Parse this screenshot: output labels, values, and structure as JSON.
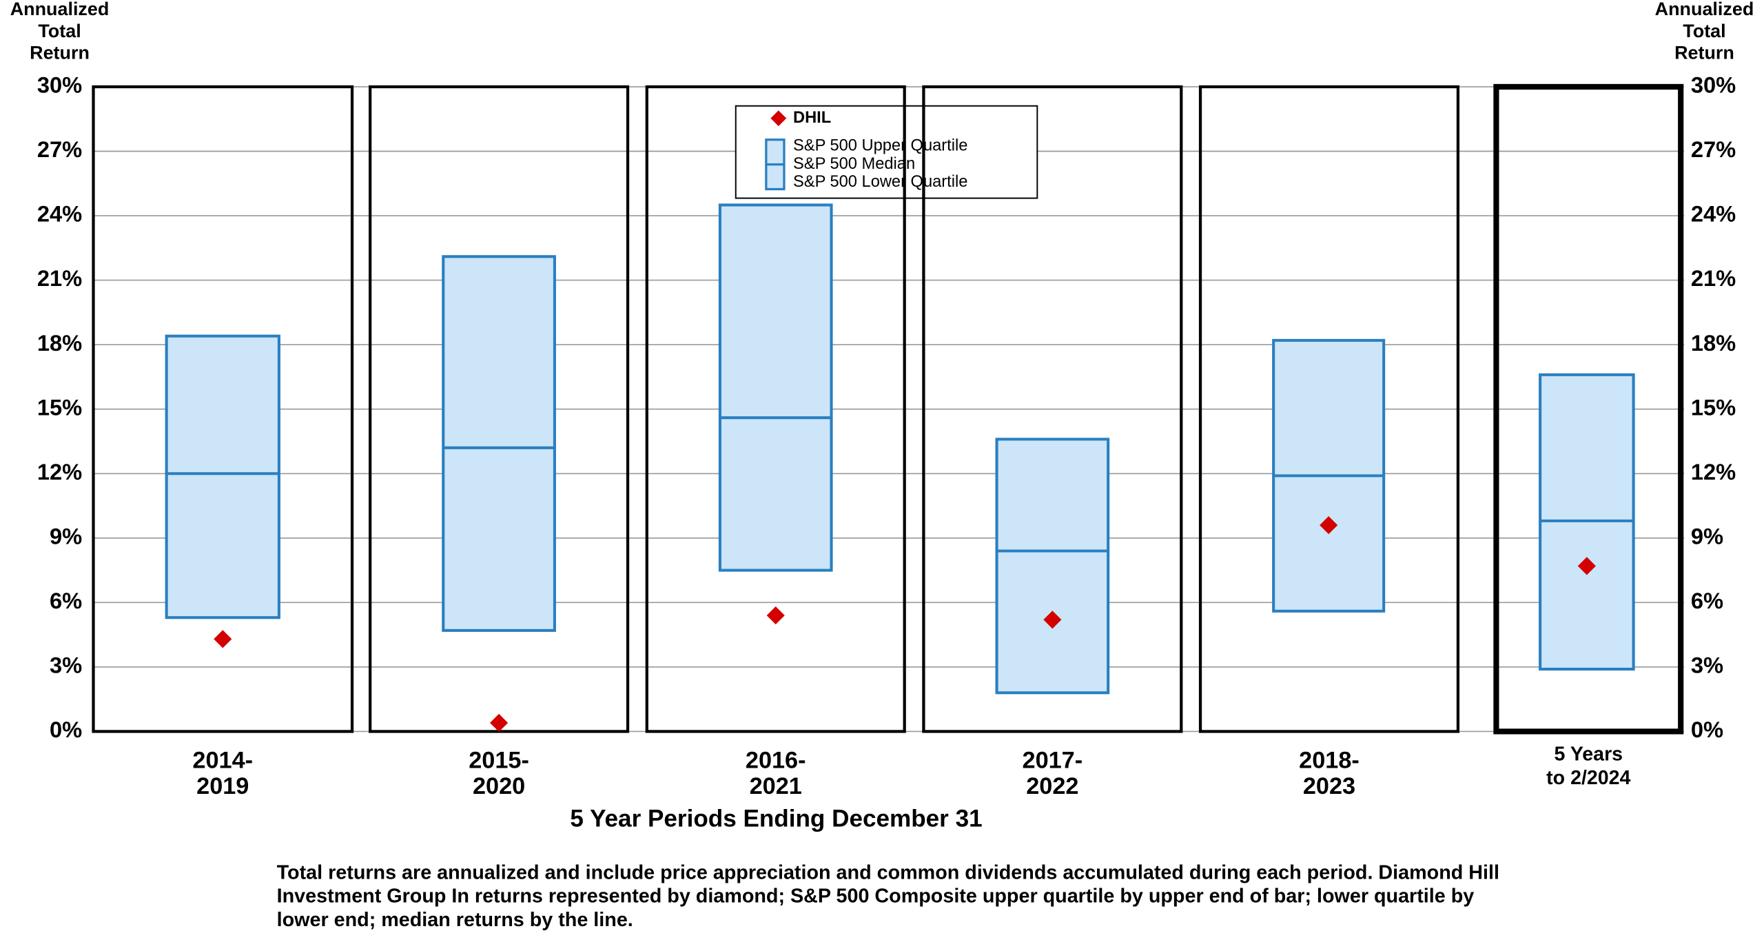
{
  "chart_data": {
    "type": "quartile-box",
    "y_label": "Annualized\nTotal\nReturn",
    "x_label": "5 Year Periods Ending December 31",
    "footnote": "Total returns are annualized and include price appreciation and common dividends accumulated during each period. Diamond Hill Investment Group In returns represented by diamond; S&P 500 Composite upper quartile by upper end of bar; lower quartile by lower end; median returns by the line.",
    "categories": [
      "2014-\n2019",
      "2015-\n2020",
      "2016-\n2021",
      "2017-\n2022",
      "2018-\n2023",
      "5 Years\nto  2/2024"
    ],
    "series": [
      {
        "name": "DHIL",
        "color": "#d40000",
        "values": [
          4.3,
          0.4,
          5.4,
          5.2,
          9.6,
          7.7
        ]
      },
      {
        "name": "S&P 500 Upper Quartile",
        "color": "#2a7fc0",
        "values": [
          18.4,
          22.1,
          24.5,
          13.6,
          18.2,
          16.6
        ]
      },
      {
        "name": "S&P 500 Median",
        "color": "#2a7fc0",
        "values": [
          12.0,
          13.2,
          14.6,
          8.4,
          11.9,
          9.8
        ]
      },
      {
        "name": "S&P 500 Lower Quartile",
        "color": "#2a7fc0",
        "values": [
          5.3,
          4.7,
          7.5,
          1.8,
          5.6,
          2.9
        ]
      }
    ],
    "box_fill": "#cce5f8",
    "ylim": [
      0,
      30
    ],
    "yticks": [
      {
        "value": 0,
        "label": "0%"
      },
      {
        "value": 3,
        "label": "3%"
      },
      {
        "value": 6,
        "label": "6%"
      },
      {
        "value": 9,
        "label": "9%"
      },
      {
        "value": 12,
        "label": "12%"
      },
      {
        "value": 15,
        "label": "15%"
      },
      {
        "value": 18,
        "label": "18%"
      },
      {
        "value": 21,
        "label": "21%"
      },
      {
        "value": 24,
        "label": "24%"
      },
      {
        "value": 27,
        "label": "27%"
      },
      {
        "value": 30,
        "label": "30%"
      }
    ],
    "grid": true
  }
}
